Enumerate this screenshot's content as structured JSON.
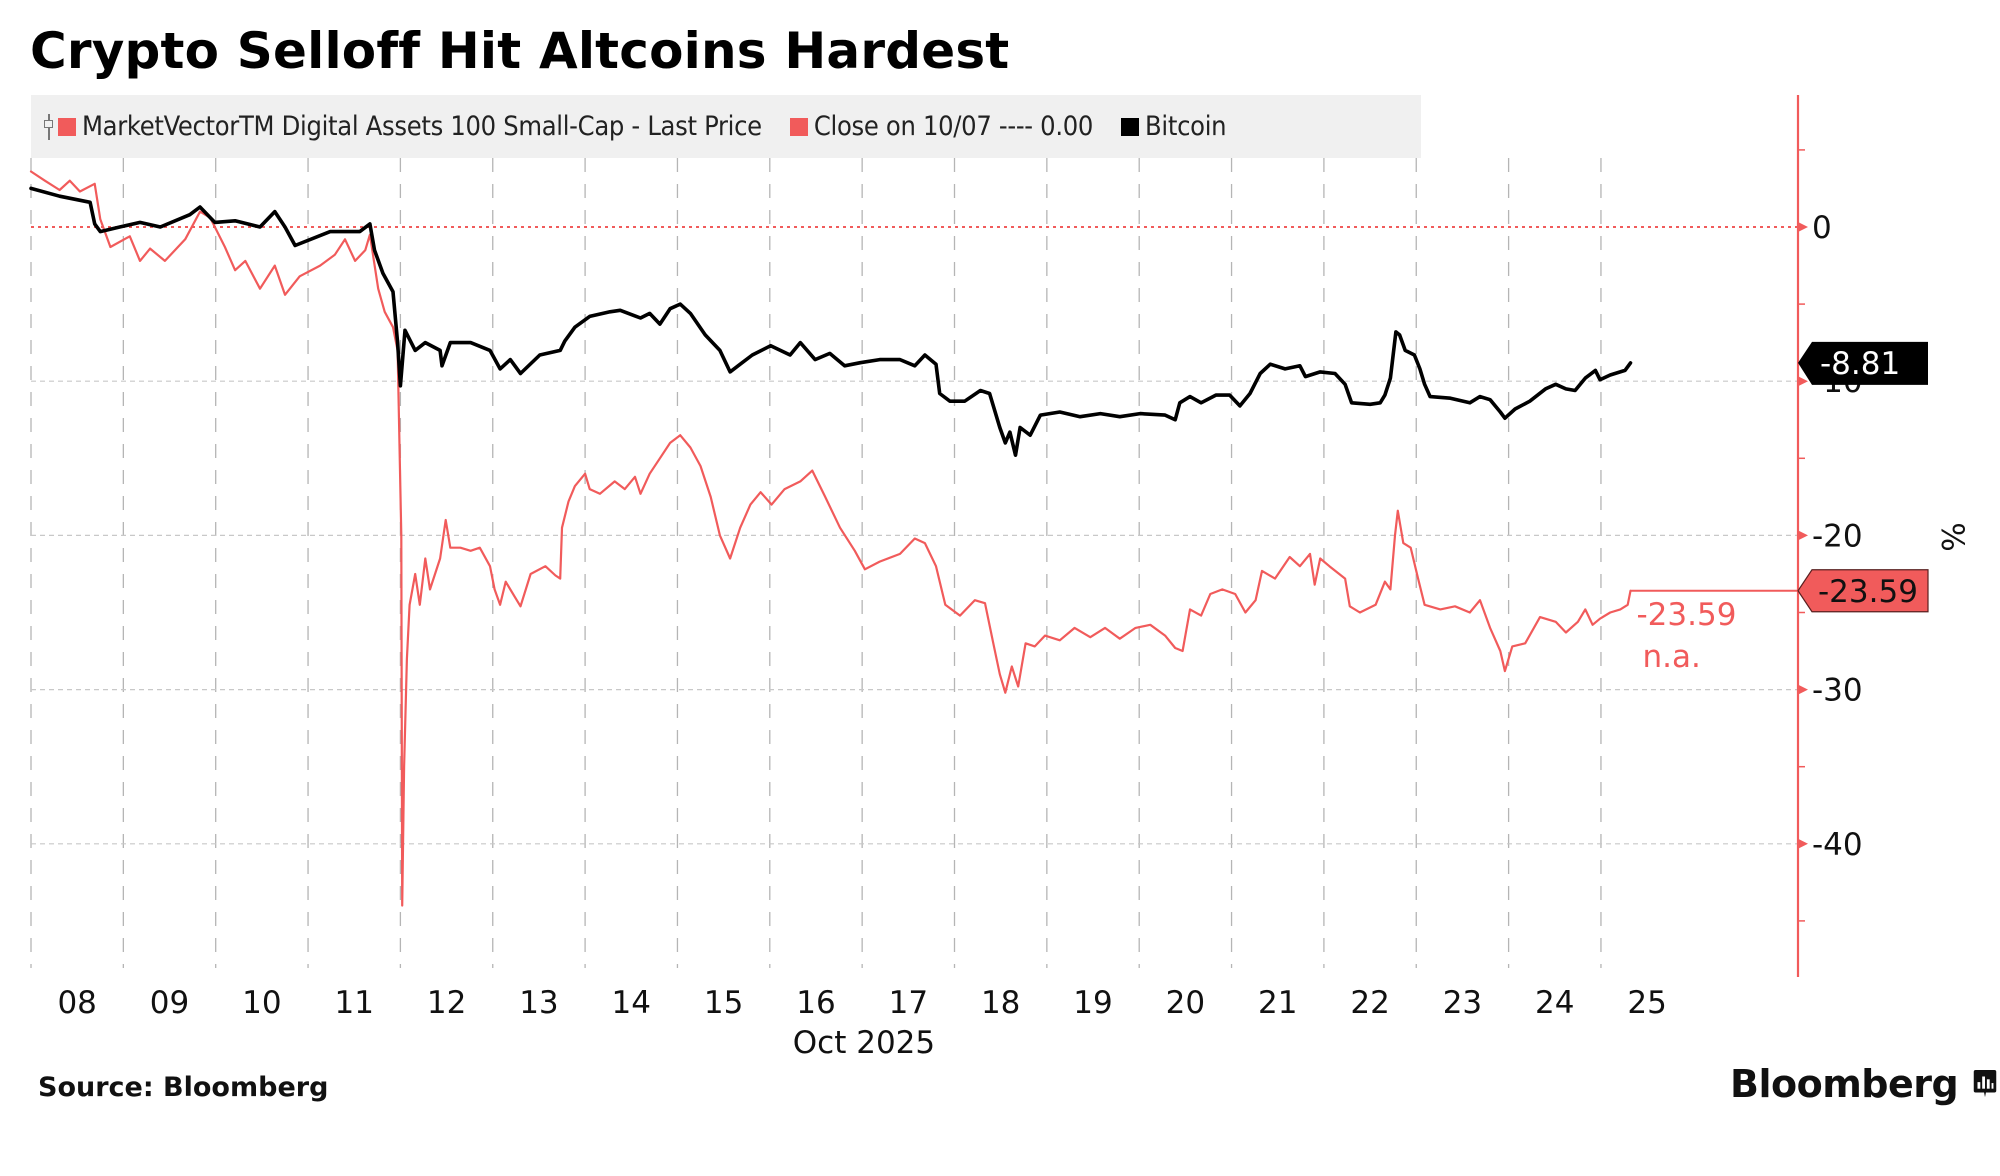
{
  "title": "Crypto Selloff Hit Altcoins Hardest",
  "legend": {
    "items": [
      {
        "label": "MarketVectorTM Digital Assets 100 Small-Cap - Last Price",
        "color": "#f15b5b"
      },
      {
        "label": "Close on 10/07 ---- 0.00",
        "color": "#f15b5b"
      },
      {
        "label": "Bitcoin",
        "color": "#000000"
      }
    ]
  },
  "source": "Source: Bloomberg",
  "brand": "Bloomberg",
  "chart_data": {
    "type": "line",
    "title": "Crypto Selloff Hit Altcoins Hardest",
    "xlabel": "Oct 2025",
    "ylabel": "%",
    "x_unit": "days since Oct 8 2025 00:00 (axis scale)",
    "x_tick_labels": [
      "08",
      "09",
      "10",
      "11",
      "12",
      "13",
      "14",
      "15",
      "16",
      "17",
      "18",
      "19",
      "20",
      "21",
      "22",
      "23",
      "24",
      "25"
    ],
    "x_range": [
      0,
      18.4
    ],
    "ylim": [
      -48,
      9
    ],
    "y_ticks": [
      0,
      -10,
      -20,
      -30,
      -40
    ],
    "y_tick_labels": [
      "0",
      "-10",
      "-20",
      "-30",
      "-40"
    ],
    "y_axis_side": "right",
    "grid": true,
    "legend_position": "top-left",
    "reference_line": {
      "label": "Close on 10/07",
      "value": 0.0
    },
    "last_value_labels": [
      {
        "series": "Bitcoin",
        "value": "-8.81"
      },
      {
        "series": "MarketVectorTM Digital Assets 100 Small-Cap - Last Price",
        "value": "-23.59",
        "note": "n.a."
      }
    ],
    "series": [
      {
        "name": "Bitcoin",
        "color": "#000000",
        "last": -8.81,
        "points": [
          [
            0.0,
            2.5
          ],
          [
            0.31,
            2.0
          ],
          [
            0.64,
            1.6
          ],
          [
            0.69,
            0.2
          ],
          [
            0.75,
            -0.3
          ],
          [
            0.96,
            0.0
          ],
          [
            1.18,
            0.3
          ],
          [
            1.4,
            0.0
          ],
          [
            1.72,
            0.8
          ],
          [
            1.83,
            1.3
          ],
          [
            1.99,
            0.3
          ],
          [
            2.21,
            0.4
          ],
          [
            2.48,
            0.0
          ],
          [
            2.64,
            1.0
          ],
          [
            2.75,
            0.0
          ],
          [
            2.86,
            -1.2
          ],
          [
            3.24,
            -0.3
          ],
          [
            3.56,
            -0.3
          ],
          [
            3.67,
            0.2
          ],
          [
            3.72,
            -1.5
          ],
          [
            3.81,
            -3.0
          ],
          [
            3.92,
            -4.2
          ],
          [
            3.97,
            -7.5
          ],
          [
            4.0,
            -10.3
          ],
          [
            4.05,
            -6.7
          ],
          [
            4.16,
            -8.0
          ],
          [
            4.27,
            -7.5
          ],
          [
            4.43,
            -8.0
          ],
          [
            4.45,
            -9.0
          ],
          [
            4.54,
            -7.5
          ],
          [
            4.76,
            -7.5
          ],
          [
            4.97,
            -8.0
          ],
          [
            5.08,
            -9.2
          ],
          [
            5.19,
            -8.6
          ],
          [
            5.3,
            -9.5
          ],
          [
            5.51,
            -8.3
          ],
          [
            5.73,
            -8.0
          ],
          [
            5.78,
            -7.4
          ],
          [
            5.89,
            -6.5
          ],
          [
            6.05,
            -5.8
          ],
          [
            6.27,
            -5.5
          ],
          [
            6.38,
            -5.4
          ],
          [
            6.6,
            -5.9
          ],
          [
            6.7,
            -5.6
          ],
          [
            6.81,
            -6.3
          ],
          [
            6.92,
            -5.3
          ],
          [
            7.03,
            -5.0
          ],
          [
            7.14,
            -5.6
          ],
          [
            7.3,
            -7.0
          ],
          [
            7.46,
            -8.0
          ],
          [
            7.57,
            -9.4
          ],
          [
            7.68,
            -8.9
          ],
          [
            7.81,
            -8.3
          ],
          [
            8.01,
            -7.7
          ],
          [
            8.22,
            -8.3
          ],
          [
            8.33,
            -7.5
          ],
          [
            8.49,
            -8.6
          ],
          [
            8.65,
            -8.2
          ],
          [
            8.81,
            -9.0
          ],
          [
            8.98,
            -8.8
          ],
          [
            9.19,
            -8.6
          ],
          [
            9.41,
            -8.6
          ],
          [
            9.57,
            -9.0
          ],
          [
            9.68,
            -8.3
          ],
          [
            9.8,
            -8.9
          ],
          [
            9.84,
            -10.8
          ],
          [
            9.95,
            -11.3
          ],
          [
            10.11,
            -11.3
          ],
          [
            10.28,
            -10.6
          ],
          [
            10.38,
            -10.8
          ],
          [
            10.49,
            -13.0
          ],
          [
            10.55,
            -14.0
          ],
          [
            10.6,
            -13.3
          ],
          [
            10.66,
            -14.8
          ],
          [
            10.71,
            -13.0
          ],
          [
            10.82,
            -13.5
          ],
          [
            10.93,
            -12.2
          ],
          [
            11.14,
            -12.0
          ],
          [
            11.36,
            -12.3
          ],
          [
            11.58,
            -12.1
          ],
          [
            11.79,
            -12.3
          ],
          [
            12.01,
            -12.1
          ],
          [
            12.28,
            -12.2
          ],
          [
            12.39,
            -12.5
          ],
          [
            12.44,
            -11.4
          ],
          [
            12.55,
            -11.0
          ],
          [
            12.67,
            -11.4
          ],
          [
            12.83,
            -10.9
          ],
          [
            12.98,
            -10.9
          ],
          [
            13.09,
            -11.6
          ],
          [
            13.2,
            -10.8
          ],
          [
            13.31,
            -9.5
          ],
          [
            13.42,
            -8.9
          ],
          [
            13.58,
            -9.2
          ],
          [
            13.74,
            -9.0
          ],
          [
            13.8,
            -9.7
          ],
          [
            13.96,
            -9.4
          ],
          [
            14.12,
            -9.5
          ],
          [
            14.23,
            -10.2
          ],
          [
            14.3,
            -11.4
          ],
          [
            14.5,
            -11.5
          ],
          [
            14.61,
            -11.4
          ],
          [
            14.66,
            -10.9
          ],
          [
            14.72,
            -9.8
          ],
          [
            14.78,
            -6.8
          ],
          [
            14.82,
            -7.0
          ],
          [
            14.88,
            -8.0
          ],
          [
            14.98,
            -8.3
          ],
          [
            15.04,
            -9.2
          ],
          [
            15.09,
            -10.2
          ],
          [
            15.15,
            -11.0
          ],
          [
            15.37,
            -11.1
          ],
          [
            15.58,
            -11.4
          ],
          [
            15.69,
            -11.0
          ],
          [
            15.8,
            -11.2
          ],
          [
            15.91,
            -12.0
          ],
          [
            15.96,
            -12.4
          ],
          [
            16.07,
            -11.8
          ],
          [
            16.23,
            -11.3
          ],
          [
            16.4,
            -10.5
          ],
          [
            16.51,
            -10.2
          ],
          [
            16.62,
            -10.5
          ],
          [
            16.72,
            -10.6
          ],
          [
            16.83,
            -9.8
          ],
          [
            16.94,
            -9.3
          ],
          [
            16.99,
            -9.9
          ],
          [
            17.1,
            -9.6
          ],
          [
            17.26,
            -9.3
          ],
          [
            17.32,
            -8.81
          ]
        ]
      },
      {
        "name": "MarketVectorTM Digital Assets 100 Small-Cap - Last Price",
        "color": "#f15b5b",
        "last": -23.59,
        "points": [
          [
            0.0,
            3.6
          ],
          [
            0.15,
            3.0
          ],
          [
            0.31,
            2.4
          ],
          [
            0.42,
            3.0
          ],
          [
            0.53,
            2.3
          ],
          [
            0.69,
            2.8
          ],
          [
            0.75,
            0.5
          ],
          [
            0.86,
            -1.3
          ],
          [
            1.07,
            -0.6
          ],
          [
            1.18,
            -2.2
          ],
          [
            1.29,
            -1.4
          ],
          [
            1.45,
            -2.2
          ],
          [
            1.67,
            -0.8
          ],
          [
            1.83,
            1.0
          ],
          [
            1.94,
            0.6
          ],
          [
            2.1,
            -1.3
          ],
          [
            2.21,
            -2.8
          ],
          [
            2.32,
            -2.2
          ],
          [
            2.48,
            -4.0
          ],
          [
            2.64,
            -2.5
          ],
          [
            2.75,
            -4.4
          ],
          [
            2.91,
            -3.2
          ],
          [
            3.13,
            -2.5
          ],
          [
            3.29,
            -1.8
          ],
          [
            3.4,
            -0.8
          ],
          [
            3.51,
            -2.2
          ],
          [
            3.62,
            -1.5
          ],
          [
            3.67,
            -0.5
          ],
          [
            3.76,
            -4.0
          ],
          [
            3.83,
            -5.5
          ],
          [
            3.92,
            -6.5
          ],
          [
            3.97,
            -8.0
          ],
          [
            4.01,
            -20.0
          ],
          [
            4.02,
            -44.0
          ],
          [
            4.04,
            -35.0
          ],
          [
            4.07,
            -28.0
          ],
          [
            4.1,
            -24.5
          ],
          [
            4.16,
            -22.5
          ],
          [
            4.21,
            -24.5
          ],
          [
            4.27,
            -21.5
          ],
          [
            4.32,
            -23.5
          ],
          [
            4.43,
            -21.5
          ],
          [
            4.49,
            -19.0
          ],
          [
            4.54,
            -20.8
          ],
          [
            4.65,
            -20.8
          ],
          [
            4.76,
            -21.0
          ],
          [
            4.86,
            -20.8
          ],
          [
            4.97,
            -22.0
          ],
          [
            5.02,
            -23.5
          ],
          [
            5.08,
            -24.5
          ],
          [
            5.14,
            -23.0
          ],
          [
            5.24,
            -24.0
          ],
          [
            5.3,
            -24.6
          ],
          [
            5.41,
            -22.5
          ],
          [
            5.57,
            -22.0
          ],
          [
            5.68,
            -22.6
          ],
          [
            5.73,
            -22.8
          ],
          [
            5.75,
            -19.5
          ],
          [
            5.82,
            -17.8
          ],
          [
            5.89,
            -16.8
          ],
          [
            6.0,
            -16.0
          ],
          [
            6.05,
            -17.0
          ],
          [
            6.16,
            -17.3
          ],
          [
            6.32,
            -16.5
          ],
          [
            6.43,
            -17.0
          ],
          [
            6.54,
            -16.2
          ],
          [
            6.6,
            -17.3
          ],
          [
            6.7,
            -16.0
          ],
          [
            6.81,
            -15.0
          ],
          [
            6.92,
            -14.0
          ],
          [
            7.03,
            -13.5
          ],
          [
            7.14,
            -14.3
          ],
          [
            7.25,
            -15.5
          ],
          [
            7.36,
            -17.5
          ],
          [
            7.46,
            -20.0
          ],
          [
            7.57,
            -21.5
          ],
          [
            7.68,
            -19.5
          ],
          [
            7.79,
            -18.0
          ],
          [
            7.9,
            -17.2
          ],
          [
            8.02,
            -18.0
          ],
          [
            8.16,
            -17.0
          ],
          [
            8.33,
            -16.5
          ],
          [
            8.46,
            -15.8
          ],
          [
            8.6,
            -17.5
          ],
          [
            8.76,
            -19.5
          ],
          [
            8.92,
            -21.0
          ],
          [
            9.03,
            -22.2
          ],
          [
            9.19,
            -21.7
          ],
          [
            9.41,
            -21.2
          ],
          [
            9.57,
            -20.2
          ],
          [
            9.68,
            -20.5
          ],
          [
            9.8,
            -22.0
          ],
          [
            9.9,
            -24.5
          ],
          [
            10.06,
            -25.2
          ],
          [
            10.22,
            -24.2
          ],
          [
            10.33,
            -24.4
          ],
          [
            10.42,
            -27.0
          ],
          [
            10.49,
            -29.0
          ],
          [
            10.55,
            -30.2
          ],
          [
            10.62,
            -28.5
          ],
          [
            10.69,
            -29.8
          ],
          [
            10.77,
            -27.0
          ],
          [
            10.87,
            -27.2
          ],
          [
            10.98,
            -26.5
          ],
          [
            11.14,
            -26.8
          ],
          [
            11.3,
            -26.0
          ],
          [
            11.47,
            -26.6
          ],
          [
            11.63,
            -26.0
          ],
          [
            11.79,
            -26.7
          ],
          [
            11.96,
            -26.0
          ],
          [
            12.12,
            -25.8
          ],
          [
            12.28,
            -26.5
          ],
          [
            12.39,
            -27.3
          ],
          [
            12.47,
            -27.5
          ],
          [
            12.55,
            -24.8
          ],
          [
            12.67,
            -25.2
          ],
          [
            12.77,
            -23.8
          ],
          [
            12.9,
            -23.5
          ],
          [
            13.04,
            -23.8
          ],
          [
            13.15,
            -25.0
          ],
          [
            13.26,
            -24.2
          ],
          [
            13.33,
            -22.3
          ],
          [
            13.47,
            -22.8
          ],
          [
            13.63,
            -21.4
          ],
          [
            13.74,
            -22.0
          ],
          [
            13.85,
            -21.2
          ],
          [
            13.9,
            -23.2
          ],
          [
            13.96,
            -21.5
          ],
          [
            14.06,
            -22.0
          ],
          [
            14.23,
            -22.8
          ],
          [
            14.28,
            -24.6
          ],
          [
            14.39,
            -25.0
          ],
          [
            14.56,
            -24.5
          ],
          [
            14.66,
            -23.0
          ],
          [
            14.72,
            -23.5
          ],
          [
            14.77,
            -20.0
          ],
          [
            14.8,
            -18.4
          ],
          [
            14.86,
            -20.5
          ],
          [
            14.94,
            -20.8
          ],
          [
            15.02,
            -22.8
          ],
          [
            15.09,
            -24.5
          ],
          [
            15.26,
            -24.8
          ],
          [
            15.42,
            -24.6
          ],
          [
            15.58,
            -25.0
          ],
          [
            15.69,
            -24.2
          ],
          [
            15.8,
            -26.0
          ],
          [
            15.91,
            -27.5
          ],
          [
            15.96,
            -28.8
          ],
          [
            16.04,
            -27.2
          ],
          [
            16.18,
            -27.0
          ],
          [
            16.34,
            -25.3
          ],
          [
            16.51,
            -25.6
          ],
          [
            16.62,
            -26.3
          ],
          [
            16.75,
            -25.6
          ],
          [
            16.83,
            -24.8
          ],
          [
            16.91,
            -25.8
          ],
          [
            16.99,
            -25.4
          ],
          [
            17.1,
            -25.0
          ],
          [
            17.21,
            -24.8
          ],
          [
            17.29,
            -24.5
          ],
          [
            17.32,
            -23.59
          ]
        ]
      }
    ]
  }
}
